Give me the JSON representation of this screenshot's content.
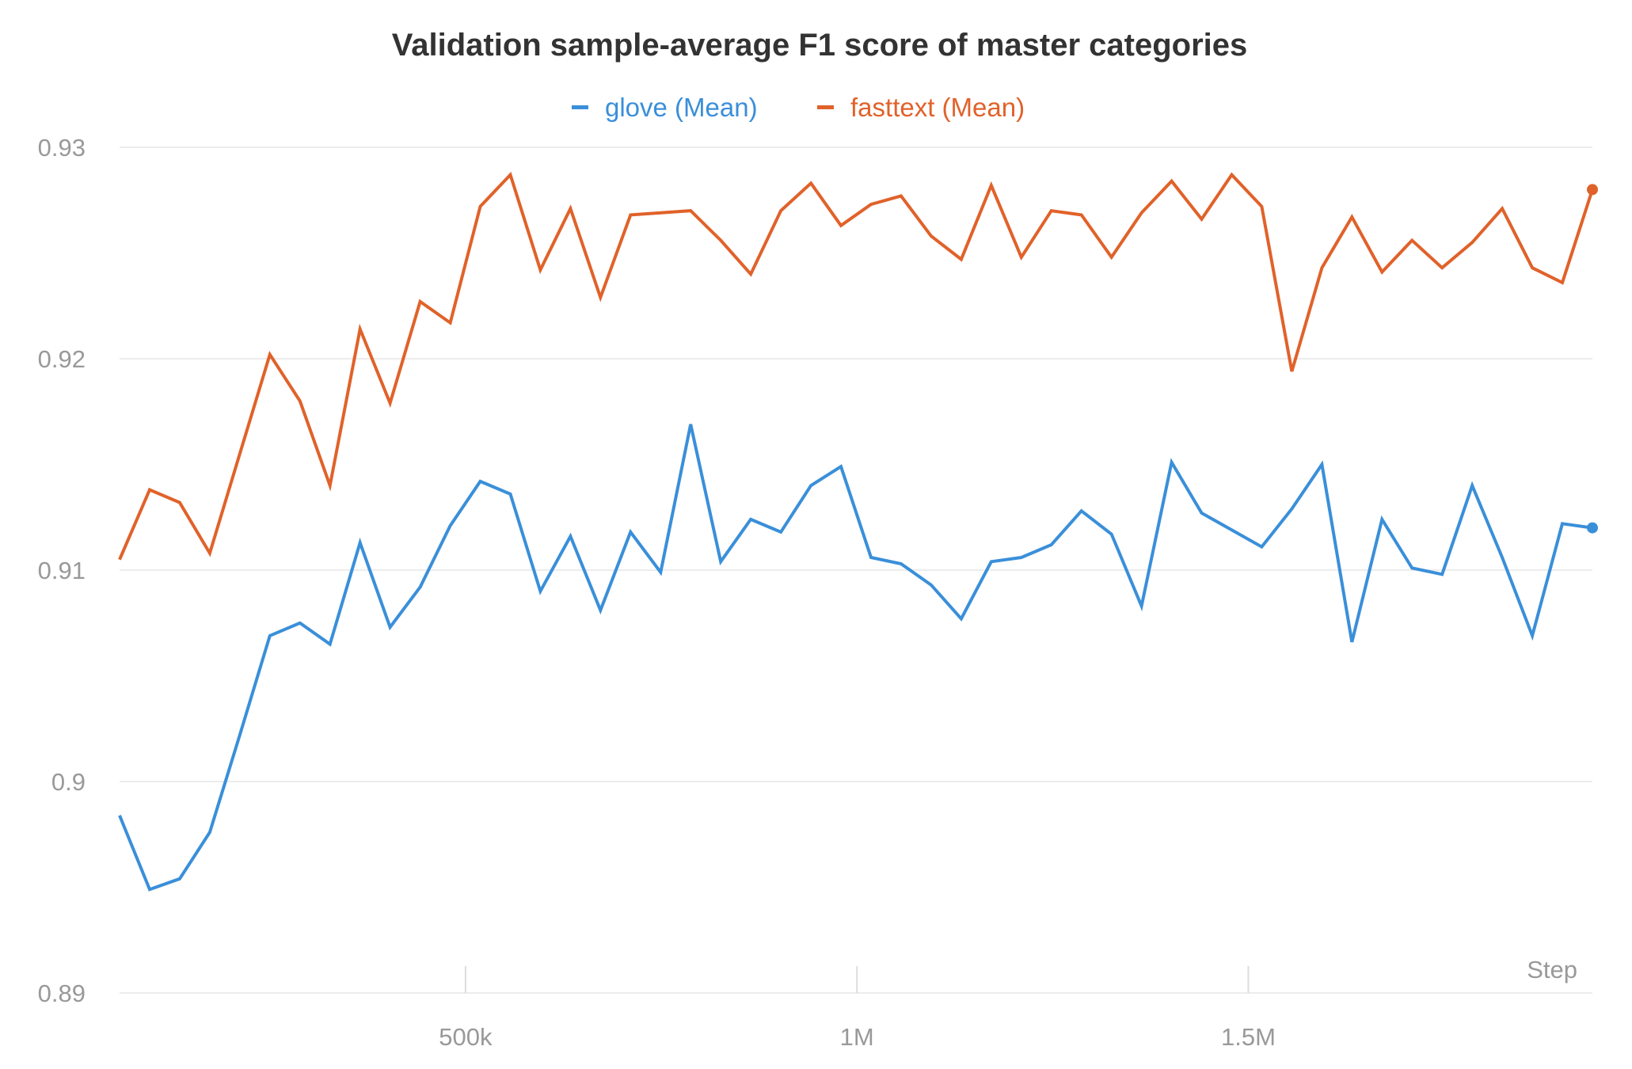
{
  "chart_data": {
    "type": "line",
    "title": "Validation sample-average F1 score of master categories",
    "xlabel": "Step",
    "ylabel": "",
    "xlim": [
      58000,
      1939600
    ],
    "ylim": [
      0.89,
      0.93
    ],
    "grid": true,
    "legend_position": "top-center",
    "yticks": [
      0.89,
      0.9,
      0.91,
      0.92,
      0.93
    ],
    "ytick_labels": [
      "0.89",
      "0.9",
      "0.91",
      "0.92",
      "0.93"
    ],
    "xticks": [
      500000,
      1000000,
      1500000
    ],
    "xtick_labels": [
      "500k",
      "1M",
      "1.5M"
    ],
    "x": [
      58000,
      96400,
      134800,
      173200,
      211600,
      250000,
      288400,
      326800,
      365200,
      403600,
      442000,
      480400,
      518800,
      557200,
      595600,
      634000,
      672400,
      710800,
      749200,
      787600,
      826000,
      864400,
      902800,
      941200,
      979600,
      1018000,
      1056400,
      1094800,
      1133200,
      1171600,
      1210000,
      1248400,
      1286800,
      1325200,
      1363600,
      1402000,
      1440400,
      1478800,
      1517200,
      1555600,
      1594000,
      1632400,
      1670800,
      1709200,
      1747600,
      1786000,
      1824400,
      1862800,
      1901200,
      1939600
    ],
    "series": [
      {
        "name": "glove (Mean)",
        "color": "#3a8fd9",
        "values": [
          0.8984,
          0.8949,
          0.8954,
          0.8976,
          0.9022,
          0.9069,
          0.9075,
          0.9065,
          0.9113,
          0.9073,
          0.9092,
          0.9121,
          0.9142,
          0.9136,
          0.909,
          0.9116,
          0.9081,
          0.9118,
          0.9099,
          0.9169,
          0.9104,
          0.9124,
          0.9118,
          0.914,
          0.9149,
          0.9106,
          0.9103,
          0.9093,
          0.9077,
          0.9104,
          0.9106,
          0.9112,
          0.9128,
          0.9117,
          0.9083,
          0.9151,
          0.9127,
          0.9119,
          0.9111,
          0.9129,
          0.915,
          0.9066,
          0.9124,
          0.9101,
          0.9098,
          0.914,
          0.9106,
          0.9069,
          0.9122,
          0.912
        ]
      },
      {
        "name": "fasttext (Mean)",
        "color": "#e0622a",
        "values": [
          0.9105,
          0.9138,
          0.9132,
          0.9108,
          0.9155,
          0.9202,
          0.918,
          0.914,
          0.9214,
          0.9179,
          0.9227,
          0.9217,
          0.9272,
          0.9287,
          0.9242,
          0.9271,
          0.9229,
          0.9268,
          0.9269,
          0.927,
          0.9256,
          0.924,
          0.927,
          0.9283,
          0.9263,
          0.9273,
          0.9277,
          0.9258,
          0.9247,
          0.9282,
          0.9248,
          0.927,
          0.9268,
          0.9248,
          0.9269,
          0.9284,
          0.9266,
          0.9287,
          0.9272,
          0.9194,
          0.9243,
          0.9267,
          0.9241,
          0.9256,
          0.9243,
          0.9255,
          0.9271,
          0.9243,
          0.9236,
          0.928
        ]
      }
    ]
  }
}
